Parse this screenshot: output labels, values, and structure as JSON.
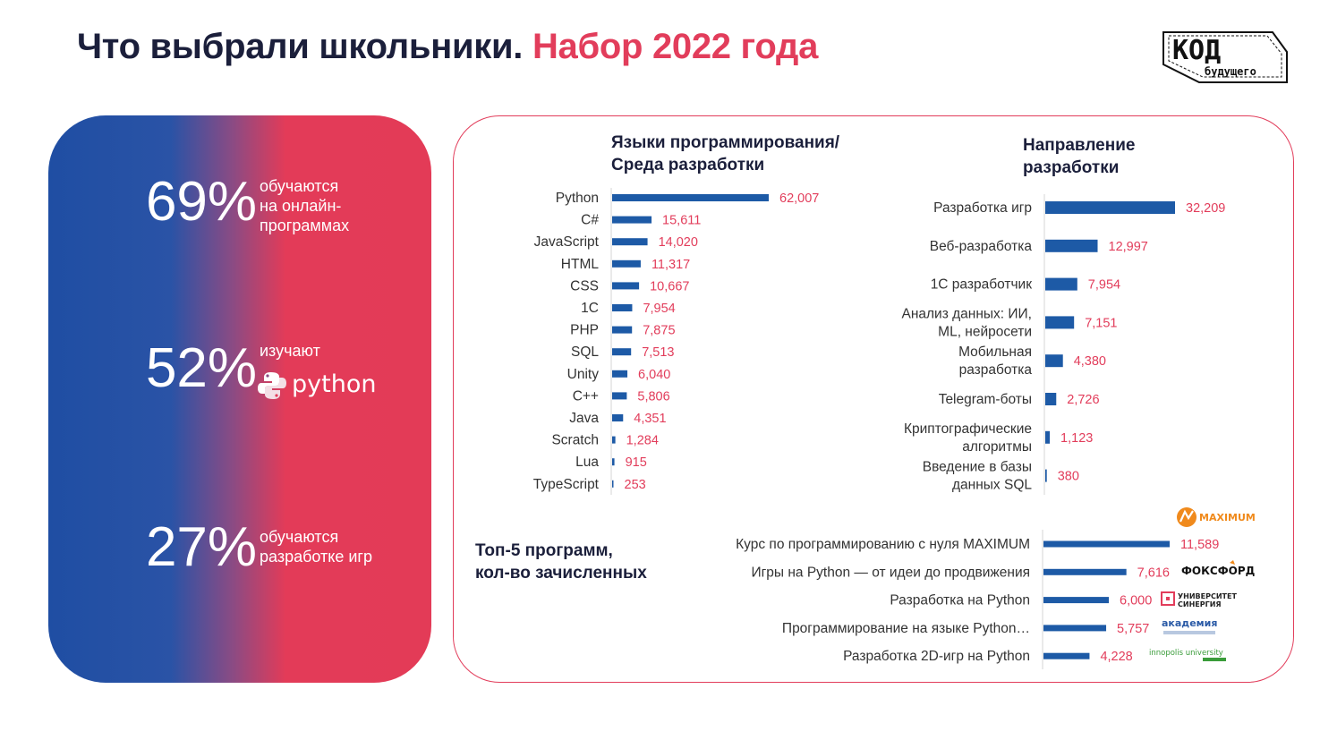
{
  "header": {
    "title_main": "Что выбрали школьники.",
    "title_accent": "Набор 2022 года",
    "logo_top": "КОД",
    "logo_bottom": "будущего"
  },
  "stats": [
    {
      "value": "69%",
      "text": [
        "обучаются",
        "на онлайн-",
        "программах"
      ]
    },
    {
      "value": "52%",
      "text": [
        "изучают"
      ],
      "brand": "python"
    },
    {
      "value": "27%",
      "text": [
        "обучаются",
        "разработке игр"
      ]
    }
  ],
  "colors": {
    "accent": "#e23d5b",
    "bar": "#1d5aa6",
    "navy": "#1b1f3b",
    "panel_blue": "#1f4ea3"
  },
  "chart_data": [
    {
      "type": "bar",
      "orientation": "horizontal",
      "title_lines": [
        "Языки программирования/",
        "Среда разработки"
      ],
      "categories": [
        "Python",
        "C#",
        "JavaScript",
        "HTML",
        "CSS",
        "1С",
        "PHP",
        "SQL",
        "Unity",
        "C++",
        "Java",
        "Scratch",
        "Lua",
        "TypeScript"
      ],
      "values": [
        62007,
        15611,
        14020,
        11317,
        10667,
        7954,
        7875,
        7513,
        6040,
        5806,
        4351,
        1284,
        915,
        253
      ],
      "labels": [
        "62,007",
        "15,611",
        "14,020",
        "11,317",
        "10,667",
        "7,954",
        "7,875",
        "7,513",
        "6,040",
        "5,806",
        "4,351",
        "1,284",
        "915",
        "253"
      ]
    },
    {
      "type": "bar",
      "orientation": "horizontal",
      "title_lines": [
        "Направление",
        "разработки"
      ],
      "categories": [
        [
          "Разработка игр"
        ],
        [
          "Веб-разработка"
        ],
        [
          "1С разработчик"
        ],
        [
          "Анализ данных: ИИ,",
          "ML, нейросети"
        ],
        [
          "Мобильная",
          "разработка"
        ],
        [
          "Telegram-боты"
        ],
        [
          "Криптографические",
          "алгоритмы"
        ],
        [
          "Введение в базы",
          "данных SQL"
        ]
      ],
      "values": [
        32209,
        12997,
        7954,
        7151,
        4380,
        2726,
        1123,
        380
      ],
      "labels": [
        "32,209",
        "12,997",
        "7,954",
        "7,151",
        "4,380",
        "2,726",
        "1,123",
        "380"
      ]
    },
    {
      "type": "bar",
      "orientation": "horizontal",
      "title_lines": [
        "Топ-5 программ,",
        "кол-во зачисленных"
      ],
      "categories": [
        "Курс по программированию с нуля MAXIMUM",
        "Игры на Python — от идеи до продвижения",
        "Разработка на Python",
        "Программирование на языке Python…",
        "Разработка 2D-игр на Python"
      ],
      "values": [
        11589,
        7616,
        6000,
        5757,
        4228
      ],
      "labels": [
        "11,589",
        "7,616",
        "6,000",
        "5,757",
        "4,228"
      ],
      "brands": [
        "MAXIMUM",
        "ФОКСФОРД",
        "УНИВЕРСИТЕТ СИНЕРГИЯ",
        "академия",
        "innopolis university"
      ]
    }
  ]
}
